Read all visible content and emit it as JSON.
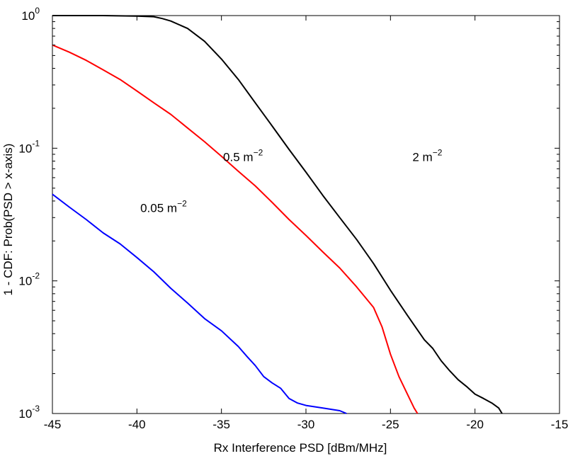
{
  "chart_data": {
    "type": "line",
    "title": "",
    "xlabel": "Rx Interference PSD [dBm/MHz]",
    "ylabel": "1 - CDF: Prob(PSD > x-axis)",
    "xlim": [
      -45,
      -15
    ],
    "ylim": [
      0.001,
      1
    ],
    "yscale": "log",
    "grid": false,
    "legend": "none",
    "x_ticks": [
      -45,
      -40,
      -35,
      -30,
      -25,
      -20,
      -15
    ],
    "x_tick_labels": [
      "-45",
      "-40",
      "-35",
      "-30",
      "-25",
      "-20",
      "-15"
    ],
    "y_ticks": [
      {
        "value": 1,
        "base": "10",
        "exp": "0"
      },
      {
        "value": 0.1,
        "base": "10",
        "exp": "-1"
      },
      {
        "value": 0.01,
        "base": "10",
        "exp": "-2"
      },
      {
        "value": 0.001,
        "base": "10",
        "exp": "-3"
      }
    ],
    "series": [
      {
        "color": "#000000",
        "x": [
          -45,
          -42,
          -40,
          -39,
          -38.5,
          -38,
          -37,
          -36,
          -35,
          -34,
          -33,
          -32,
          -31,
          -30,
          -29,
          -28,
          -27,
          -26,
          -25,
          -24,
          -23,
          -22.5,
          -22,
          -21.5,
          -21,
          -20.5,
          -20,
          -19.5,
          -19,
          -18.6,
          -18.4
        ],
        "y": [
          1.0,
          1.0,
          0.99,
          0.98,
          0.95,
          0.91,
          0.8,
          0.64,
          0.47,
          0.33,
          0.22,
          0.147,
          0.098,
          0.066,
          0.044,
          0.03,
          0.0205,
          0.0135,
          0.0085,
          0.0055,
          0.0036,
          0.0031,
          0.0025,
          0.0021,
          0.0018,
          0.0016,
          0.0014,
          0.0013,
          0.0012,
          0.0011,
          0.001
        ]
      },
      {
        "color": "#ff0000",
        "x": [
          -45,
          -44,
          -43,
          -42,
          -41,
          -40,
          -39,
          -38,
          -37,
          -36,
          -35,
          -34,
          -33,
          -32,
          -31,
          -30,
          -29,
          -28,
          -27,
          -26,
          -25.5,
          -25,
          -24.5,
          -24,
          -23.6,
          -23.4
        ],
        "y": [
          0.6,
          0.53,
          0.46,
          0.39,
          0.33,
          0.27,
          0.22,
          0.18,
          0.142,
          0.112,
          0.087,
          0.067,
          0.052,
          0.039,
          0.029,
          0.022,
          0.0165,
          0.0125,
          0.009,
          0.0063,
          0.0045,
          0.0028,
          0.0019,
          0.0014,
          0.0011,
          0.001
        ]
      },
      {
        "color": "#0000ff",
        "x": [
          -45,
          -44,
          -43,
          -42,
          -41,
          -40,
          -39,
          -38,
          -37,
          -36,
          -35,
          -34,
          -33.5,
          -33,
          -32.5,
          -32,
          -31.5,
          -31,
          -30.5,
          -30,
          -29,
          -28,
          -27.6
        ],
        "y": [
          0.045,
          0.036,
          0.029,
          0.023,
          0.019,
          0.015,
          0.0117,
          0.0088,
          0.0068,
          0.0052,
          0.0042,
          0.0032,
          0.0027,
          0.0023,
          0.0019,
          0.0017,
          0.00155,
          0.0013,
          0.0012,
          0.00115,
          0.0011,
          0.00105,
          0.001
        ]
      }
    ],
    "annotations": [
      {
        "base": "2 m",
        "exp": "−2",
        "x": -23.7,
        "y": 0.08
      },
      {
        "base": "0.5 m",
        "exp": "−2",
        "x": -34.9,
        "y": 0.08
      },
      {
        "base": "0.05 m",
        "exp": "−2",
        "x": -39.8,
        "y": 0.033
      }
    ]
  }
}
